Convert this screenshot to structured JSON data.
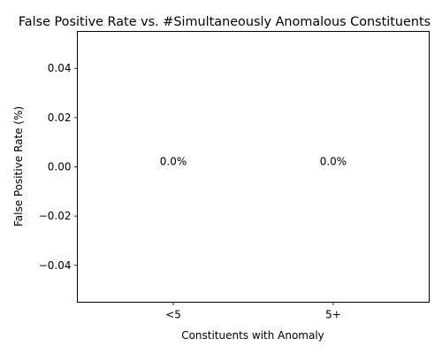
{
  "chart_data": {
    "type": "bar",
    "title": "False Positive Rate vs. #Simultaneously Anomalous Constituents",
    "xlabel": "Constituents with Anomaly",
    "ylabel": "False Positive Rate (%)",
    "categories": [
      "<5",
      "5+"
    ],
    "values": [
      0.0,
      0.0
    ],
    "data_labels": [
      "0.0%",
      "0.0%"
    ],
    "ylim": [
      -0.055,
      0.055
    ],
    "yticks": [
      -0.04,
      -0.02,
      0.0,
      0.02,
      0.04
    ],
    "ytick_labels": [
      "−0.04",
      "−0.02",
      "0.00",
      "0.02",
      "0.04"
    ],
    "grid": false,
    "legend": "none"
  }
}
